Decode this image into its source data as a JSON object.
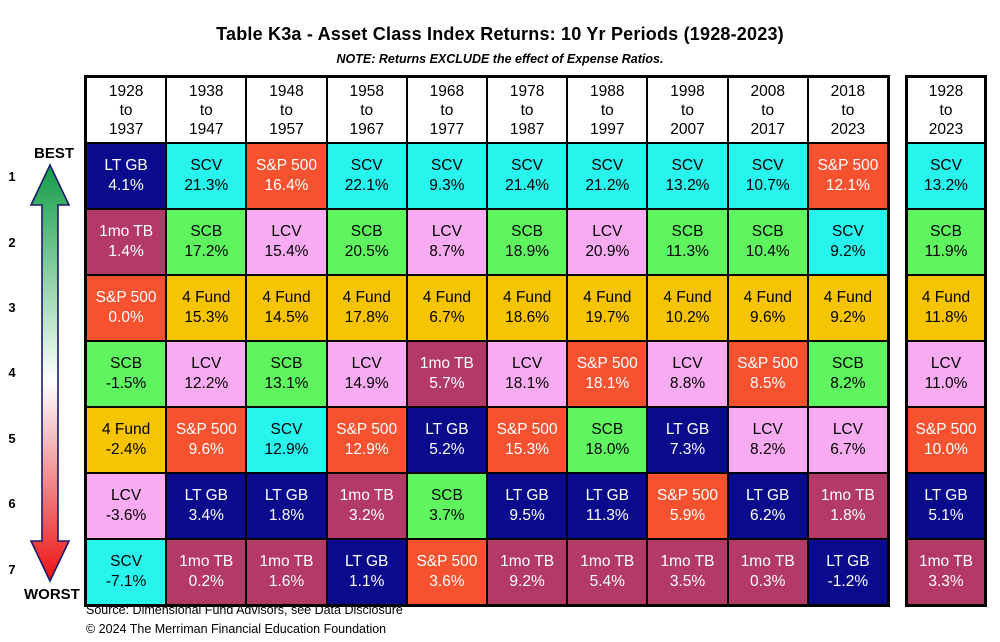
{
  "title": "Table K3a - Asset Class Index Returns: 10 Yr Periods (1928-2023)",
  "note": "NOTE: Returns EXCLUDE the effect of Expense Ratios.",
  "rank_rail": {
    "best_label": "BEST",
    "worst_label": "WORST",
    "ranks": [
      "1",
      "2",
      "3",
      "4",
      "5",
      "6",
      "7"
    ],
    "arrow_top_color": "#119c45",
    "arrow_mid_color": "#ffffff",
    "arrow_bottom_color": "#ee1111",
    "arrow_outline_color": "#1a1a6e"
  },
  "footer": {
    "source": "Source: Dimensional Fund Advisors, see Data Disclosure",
    "copyright": "© 2024 The Merriman Financial Education Foundation"
  },
  "chart_data": {
    "type": "table",
    "title": "Table K3a - Asset Class Index Returns: 10 Yr Periods (1928-2023)",
    "note": "NOTE: Returns EXCLUDE the effect of Expense Ratios.",
    "rank_axis": {
      "best": "BEST",
      "worst": "WORST",
      "ranks": [
        1,
        2,
        3,
        4,
        5,
        6,
        7
      ]
    },
    "asset_classes": [
      {
        "name": "LT GB",
        "bg": "#0a0a8c",
        "fg": "#ffffff"
      },
      {
        "name": "SCV",
        "bg": "#26f4ed",
        "fg": "#000000"
      },
      {
        "name": "S&P 500",
        "bg": "#f75230",
        "fg": "#ffffff"
      },
      {
        "name": "SCB",
        "bg": "#5ef55e",
        "fg": "#000000"
      },
      {
        "name": "LCV",
        "bg": "#f9abf2",
        "fg": "#000000"
      },
      {
        "name": "4 Fund",
        "bg": "#f6c400",
        "fg": "#000000"
      },
      {
        "name": "1mo TB",
        "bg": "#b33a66",
        "fg": "#ffffff"
      }
    ],
    "columns": [
      {
        "header": [
          "1928",
          "to",
          "1937"
        ],
        "cells": [
          {
            "label": "LT GB",
            "value": "4.1%"
          },
          {
            "label": "1mo TB",
            "value": "1.4%"
          },
          {
            "label": "S&P 500",
            "value": "0.0%"
          },
          {
            "label": "SCB",
            "value": "-1.5%"
          },
          {
            "label": "4 Fund",
            "value": "-2.4%"
          },
          {
            "label": "LCV",
            "value": "-3.6%"
          },
          {
            "label": "SCV",
            "value": "-7.1%"
          }
        ]
      },
      {
        "header": [
          "1938",
          "to",
          "1947"
        ],
        "cells": [
          {
            "label": "SCV",
            "value": "21.3%"
          },
          {
            "label": "SCB",
            "value": "17.2%"
          },
          {
            "label": "4 Fund",
            "value": "15.3%"
          },
          {
            "label": "LCV",
            "value": "12.2%"
          },
          {
            "label": "S&P 500",
            "value": "9.6%"
          },
          {
            "label": "LT GB",
            "value": "3.4%"
          },
          {
            "label": "1mo TB",
            "value": "0.2%"
          }
        ]
      },
      {
        "header": [
          "1948",
          "to",
          "1957"
        ],
        "cells": [
          {
            "label": "S&P 500",
            "value": "16.4%"
          },
          {
            "label": "LCV",
            "value": "15.4%"
          },
          {
            "label": "4 Fund",
            "value": "14.5%"
          },
          {
            "label": "SCB",
            "value": "13.1%"
          },
          {
            "label": "SCV",
            "value": "12.9%"
          },
          {
            "label": "LT GB",
            "value": "1.8%"
          },
          {
            "label": "1mo TB",
            "value": "1.6%"
          }
        ]
      },
      {
        "header": [
          "1958",
          "to",
          "1967"
        ],
        "cells": [
          {
            "label": "SCV",
            "value": "22.1%"
          },
          {
            "label": "SCB",
            "value": "20.5%"
          },
          {
            "label": "4 Fund",
            "value": "17.8%"
          },
          {
            "label": "LCV",
            "value": "14.9%"
          },
          {
            "label": "S&P 500",
            "value": "12.9%"
          },
          {
            "label": "1mo TB",
            "value": "3.2%"
          },
          {
            "label": "LT GB",
            "value": "1.1%"
          }
        ]
      },
      {
        "header": [
          "1968",
          "to",
          "1977"
        ],
        "cells": [
          {
            "label": "SCV",
            "value": "9.3%"
          },
          {
            "label": "LCV",
            "value": "8.7%"
          },
          {
            "label": "4 Fund",
            "value": "6.7%"
          },
          {
            "label": "1mo TB",
            "value": "5.7%"
          },
          {
            "label": "LT GB",
            "value": "5.2%"
          },
          {
            "label": "SCB",
            "value": "3.7%"
          },
          {
            "label": "S&P 500",
            "value": "3.6%"
          }
        ]
      },
      {
        "header": [
          "1978",
          "to",
          "1987"
        ],
        "cells": [
          {
            "label": "SCV",
            "value": "21.4%"
          },
          {
            "label": "SCB",
            "value": "18.9%"
          },
          {
            "label": "4 Fund",
            "value": "18.6%"
          },
          {
            "label": "LCV",
            "value": "18.1%"
          },
          {
            "label": "S&P 500",
            "value": "15.3%"
          },
          {
            "label": "LT GB",
            "value": "9.5%"
          },
          {
            "label": "1mo TB",
            "value": "9.2%"
          }
        ]
      },
      {
        "header": [
          "1988",
          "to",
          "1997"
        ],
        "cells": [
          {
            "label": "SCV",
            "value": "21.2%"
          },
          {
            "label": "LCV",
            "value": "20.9%"
          },
          {
            "label": "4 Fund",
            "value": "19.7%"
          },
          {
            "label": "S&P 500",
            "value": "18.1%"
          },
          {
            "label": "SCB",
            "value": "18.0%"
          },
          {
            "label": "LT GB",
            "value": "11.3%"
          },
          {
            "label": "1mo TB",
            "value": "5.4%"
          }
        ]
      },
      {
        "header": [
          "1998",
          "to",
          "2007"
        ],
        "cells": [
          {
            "label": "SCV",
            "value": "13.2%"
          },
          {
            "label": "SCB",
            "value": "11.3%"
          },
          {
            "label": "4 Fund",
            "value": "10.2%"
          },
          {
            "label": "LCV",
            "value": "8.8%"
          },
          {
            "label": "LT GB",
            "value": "7.3%"
          },
          {
            "label": "S&P 500",
            "value": "5.9%"
          },
          {
            "label": "1mo TB",
            "value": "3.5%"
          }
        ]
      },
      {
        "header": [
          "2008",
          "to",
          "2017"
        ],
        "cells": [
          {
            "label": "SCV",
            "value": "10.7%"
          },
          {
            "label": "SCB",
            "value": "10.4%"
          },
          {
            "label": "4 Fund",
            "value": "9.6%"
          },
          {
            "label": "S&P 500",
            "value": "8.5%"
          },
          {
            "label": "LCV",
            "value": "8.2%"
          },
          {
            "label": "LT GB",
            "value": "6.2%"
          },
          {
            "label": "1mo TB",
            "value": "0.3%"
          }
        ]
      },
      {
        "header": [
          "2018",
          "to",
          "2023"
        ],
        "cells": [
          {
            "label": "S&P 500",
            "value": "12.1%"
          },
          {
            "label": "SCV",
            "value": "9.2%"
          },
          {
            "label": "4 Fund",
            "value": "9.2%"
          },
          {
            "label": "SCB",
            "value": "8.2%"
          },
          {
            "label": "LCV",
            "value": "6.7%"
          },
          {
            "label": "1mo TB",
            "value": "1.8%"
          },
          {
            "label": "LT GB",
            "value": "-1.2%"
          }
        ]
      }
    ],
    "summary_column": {
      "header": [
        "1928",
        "to",
        "2023"
      ],
      "cells": [
        {
          "label": "SCV",
          "value": "13.2%"
        },
        {
          "label": "SCB",
          "value": "11.9%"
        },
        {
          "label": "4 Fund",
          "value": "11.8%"
        },
        {
          "label": "LCV",
          "value": "11.0%"
        },
        {
          "label": "S&P 500",
          "value": "10.0%"
        },
        {
          "label": "LT GB",
          "value": "5.1%"
        },
        {
          "label": "1mo TB",
          "value": "3.3%"
        }
      ]
    }
  }
}
